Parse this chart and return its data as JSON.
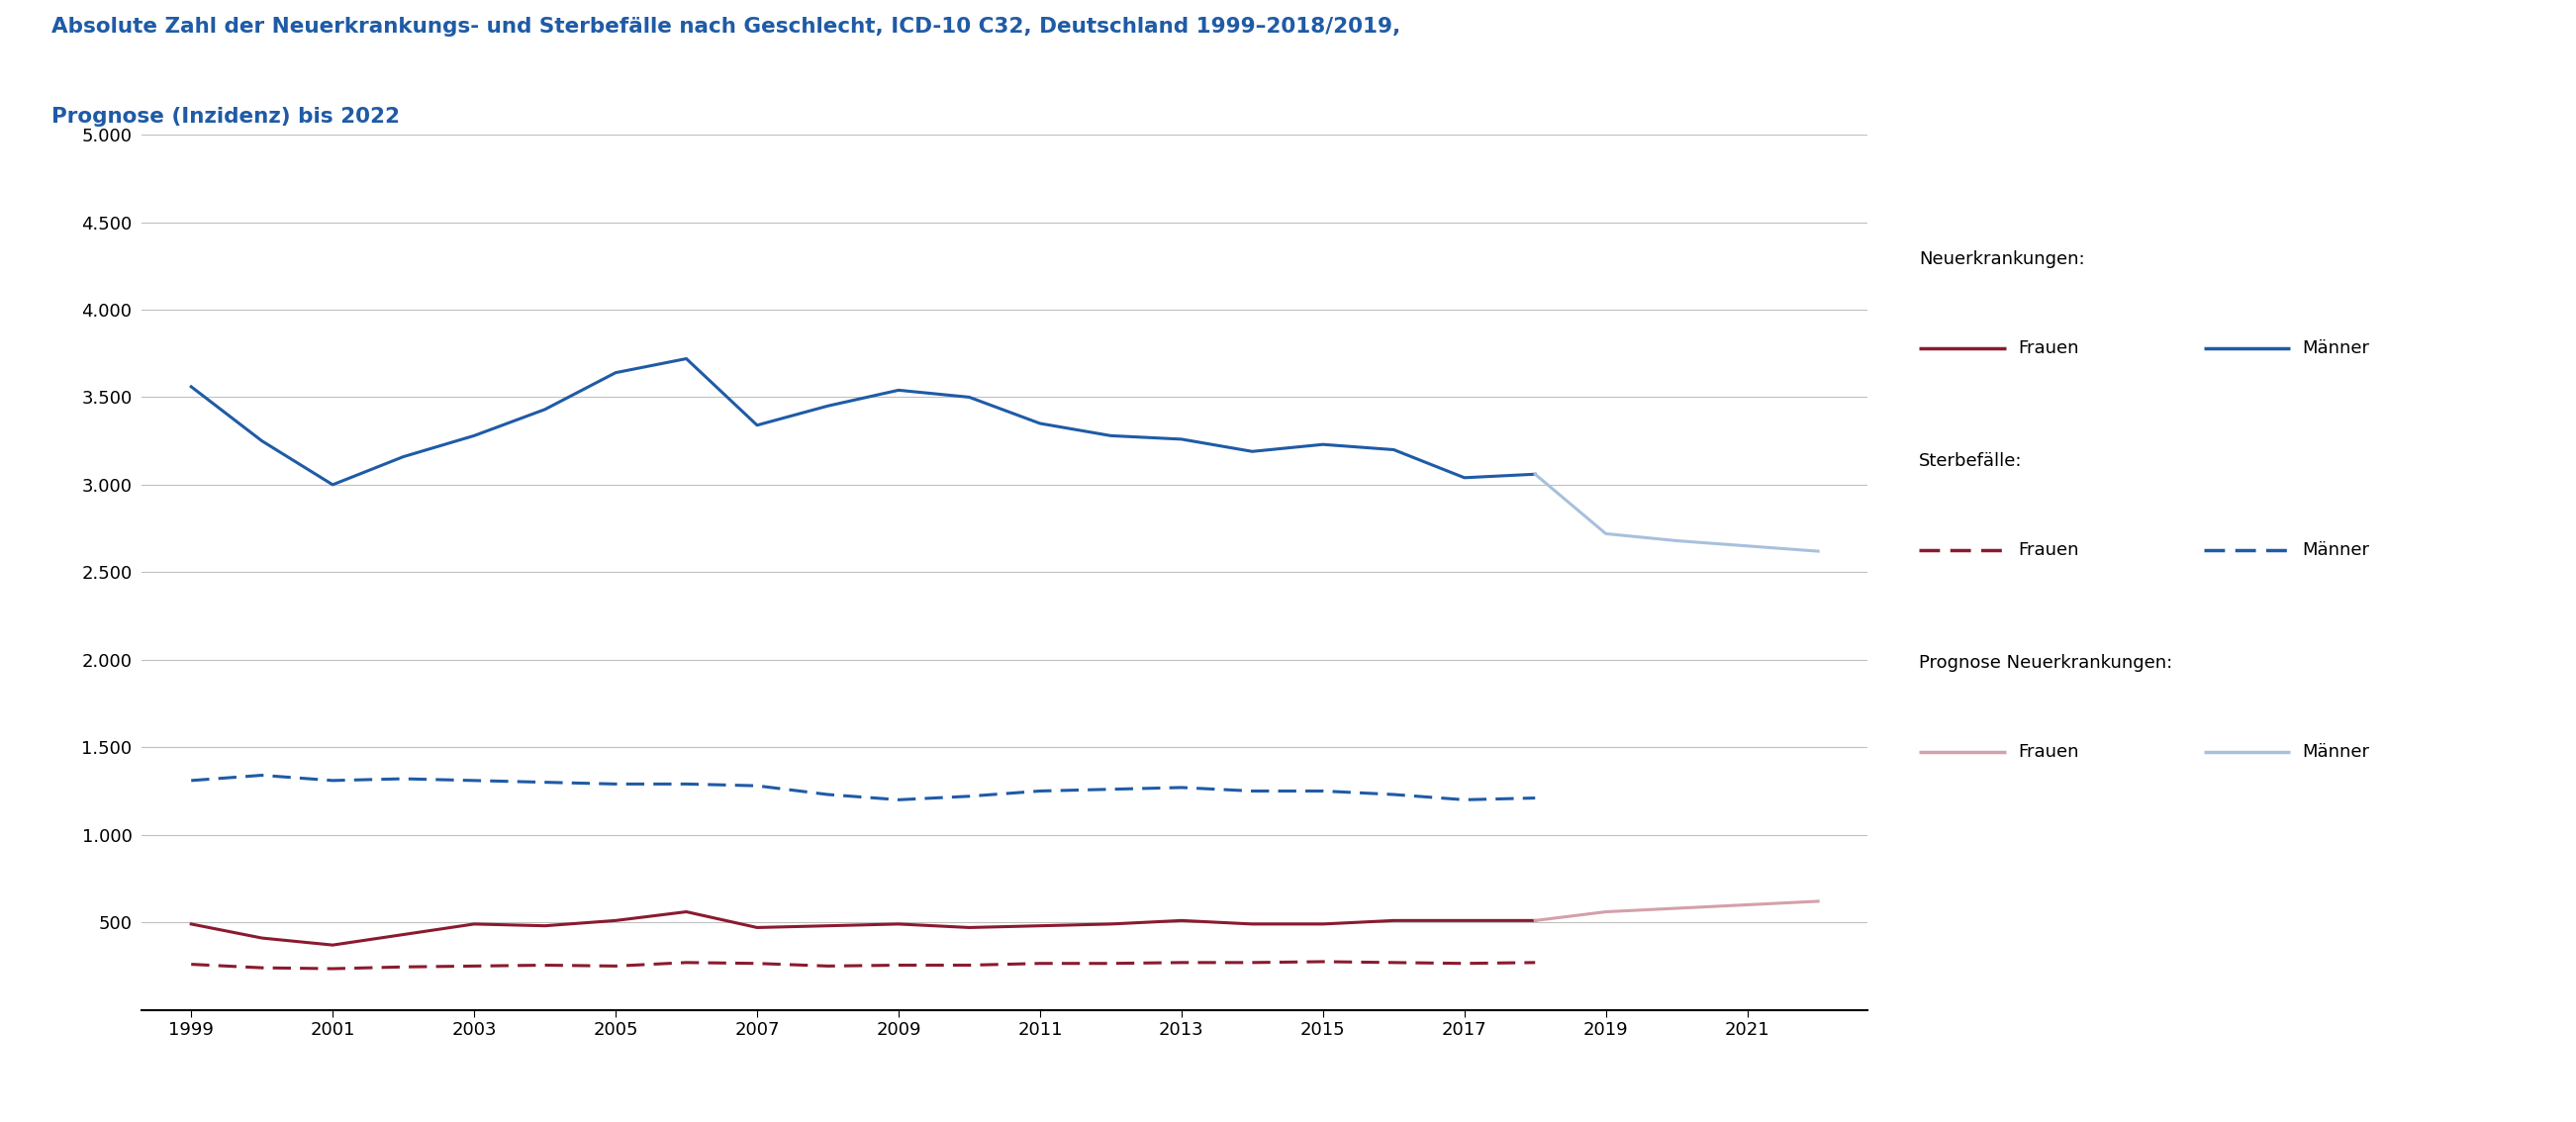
{
  "title_line1": "Absolute Zahl der Neuerkrankungs- und Sterbefälle nach Geschlecht, ICD-10 C32, Deutschland 1999–2018/2019,",
  "title_line2": "Prognose (Inzidenz) bis 2022",
  "title_color": "#1F5BA6",
  "title_fontsize": 15.5,
  "years_main": [
    1999,
    2000,
    2001,
    2002,
    2003,
    2004,
    2005,
    2006,
    2007,
    2008,
    2009,
    2010,
    2011,
    2012,
    2013,
    2014,
    2015,
    2016,
    2017,
    2018
  ],
  "years_prognose": [
    2019,
    2020,
    2021,
    2022
  ],
  "neu_maenner": [
    3560,
    3250,
    3000,
    3160,
    3280,
    3430,
    3640,
    3720,
    3340,
    3450,
    3540,
    3500,
    3350,
    3280,
    3260,
    3190,
    3230,
    3200,
    3040,
    3060
  ],
  "neu_frauen": [
    490,
    410,
    370,
    430,
    490,
    480,
    510,
    560,
    470,
    480,
    490,
    470,
    480,
    490,
    510,
    490,
    490,
    510,
    510,
    510
  ],
  "sterb_maenner": [
    1310,
    1340,
    1310,
    1320,
    1310,
    1300,
    1290,
    1290,
    1280,
    1230,
    1200,
    1220,
    1250,
    1260,
    1270,
    1250,
    1250,
    1230,
    1200,
    1210
  ],
  "sterb_frauen": [
    260,
    240,
    235,
    245,
    250,
    255,
    250,
    270,
    265,
    250,
    255,
    255,
    265,
    265,
    270,
    270,
    275,
    270,
    265,
    270
  ],
  "prog_maenner": [
    2720,
    2680,
    2650,
    2620
  ],
  "prog_frauen": [
    560,
    580,
    600,
    620
  ],
  "ylim": [
    0,
    5000
  ],
  "yticks": [
    0,
    500,
    1000,
    1500,
    2000,
    2500,
    3000,
    3500,
    4000,
    4500,
    5000
  ],
  "xticks": [
    1999,
    2001,
    2003,
    2005,
    2007,
    2009,
    2011,
    2013,
    2015,
    2017,
    2019,
    2021
  ],
  "xlim": [
    1998.3,
    2022.7
  ],
  "color_maenner": "#1F5BA6",
  "color_frauen": "#8B1A2F",
  "color_prog_maenner": "#A8C0DC",
  "color_prog_frauen": "#D4A0AA",
  "grid_color": "#C0C0C0",
  "lw": 2.2,
  "legend_sections": [
    "Neuerkrankungen:",
    "Sterbefälle:",
    "Prognose Neuerkrankungen:"
  ],
  "legend_frauen_label": "Frauen",
  "legend_maenner_label": "Männer"
}
